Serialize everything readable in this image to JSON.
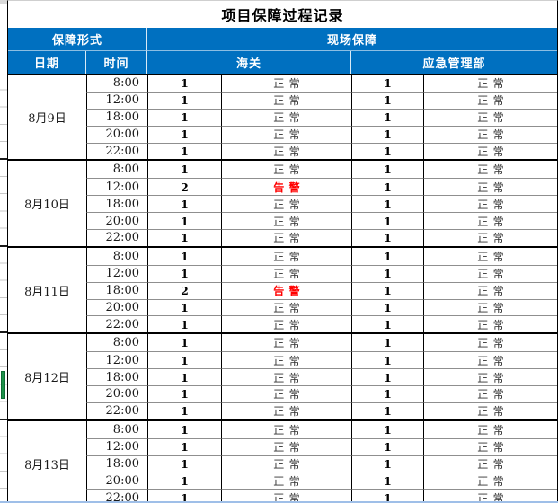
{
  "title": "项目保障过程记录",
  "colors": {
    "header_bg": "#0070C0",
    "header_text": "#FFFFFF",
    "alert_text": "#FF0000",
    "normal_text": "#2F2F2F",
    "selection_green": "#1D9149",
    "bottom_pane_line": "#9FBFE8"
  },
  "header": {
    "support_form": "保障形式",
    "onsite_support": "现场保障",
    "date": "日期",
    "time": "时间",
    "customs": "海关",
    "emergency": "应急管理部"
  },
  "table": {
    "groups": [
      {
        "date": "8月9日",
        "rows": [
          {
            "time": "8:00",
            "customs_count": "1",
            "customs_status": "正常",
            "customs_alert": false,
            "emergency_count": "1",
            "emergency_status": "正常"
          },
          {
            "time": "12:00",
            "customs_count": "1",
            "customs_status": "正常",
            "customs_alert": false,
            "emergency_count": "1",
            "emergency_status": "正常"
          },
          {
            "time": "18:00",
            "customs_count": "1",
            "customs_status": "正常",
            "customs_alert": false,
            "emergency_count": "1",
            "emergency_status": "正常"
          },
          {
            "time": "20:00",
            "customs_count": "1",
            "customs_status": "正常",
            "customs_alert": false,
            "emergency_count": "1",
            "emergency_status": "正常"
          },
          {
            "time": "22:00",
            "customs_count": "1",
            "customs_status": "正常",
            "customs_alert": false,
            "emergency_count": "1",
            "emergency_status": "正常"
          }
        ]
      },
      {
        "date": "8月10日",
        "rows": [
          {
            "time": "8:00",
            "customs_count": "1",
            "customs_status": "正常",
            "customs_alert": false,
            "emergency_count": "1",
            "emergency_status": "正常"
          },
          {
            "time": "12:00",
            "customs_count": "2",
            "customs_status": "告警",
            "customs_alert": true,
            "emergency_count": "1",
            "emergency_status": "正常"
          },
          {
            "time": "18:00",
            "customs_count": "1",
            "customs_status": "正常",
            "customs_alert": false,
            "emergency_count": "1",
            "emergency_status": "正常"
          },
          {
            "time": "20:00",
            "customs_count": "1",
            "customs_status": "正常",
            "customs_alert": false,
            "emergency_count": "1",
            "emergency_status": "正常"
          },
          {
            "time": "22:00",
            "customs_count": "1",
            "customs_status": "正常",
            "customs_alert": false,
            "emergency_count": "1",
            "emergency_status": "正常"
          }
        ]
      },
      {
        "date": "8月11日",
        "rows": [
          {
            "time": "8:00",
            "customs_count": "1",
            "customs_status": "正常",
            "customs_alert": false,
            "emergency_count": "1",
            "emergency_status": "正常"
          },
          {
            "time": "12:00",
            "customs_count": "1",
            "customs_status": "正常",
            "customs_alert": false,
            "emergency_count": "1",
            "emergency_status": "正常"
          },
          {
            "time": "18:00",
            "customs_count": "2",
            "customs_status": "告警",
            "customs_alert": true,
            "emergency_count": "1",
            "emergency_status": "正常"
          },
          {
            "time": "20:00",
            "customs_count": "1",
            "customs_status": "正常",
            "customs_alert": false,
            "emergency_count": "1",
            "emergency_status": "正常"
          },
          {
            "time": "22:00",
            "customs_count": "1",
            "customs_status": "正常",
            "customs_alert": false,
            "emergency_count": "1",
            "emergency_status": "正常"
          }
        ]
      },
      {
        "date": "8月12日",
        "rows": [
          {
            "time": "8:00",
            "customs_count": "1",
            "customs_status": "正常",
            "customs_alert": false,
            "emergency_count": "1",
            "emergency_status": "正常"
          },
          {
            "time": "12:00",
            "customs_count": "1",
            "customs_status": "正常",
            "customs_alert": false,
            "emergency_count": "1",
            "emergency_status": "正常"
          },
          {
            "time": "18:00",
            "customs_count": "1",
            "customs_status": "正常",
            "customs_alert": false,
            "emergency_count": "1",
            "emergency_status": "正常"
          },
          {
            "time": "20:00",
            "customs_count": "1",
            "customs_status": "正常",
            "customs_alert": false,
            "emergency_count": "1",
            "emergency_status": "正常"
          },
          {
            "time": "22:00",
            "customs_count": "1",
            "customs_status": "正常",
            "customs_alert": false,
            "emergency_count": "1",
            "emergency_status": "正常"
          }
        ]
      },
      {
        "date": "8月13日",
        "rows": [
          {
            "time": "8:00",
            "customs_count": "1",
            "customs_status": "正常",
            "customs_alert": false,
            "emergency_count": "1",
            "emergency_status": "正常"
          },
          {
            "time": "12:00",
            "customs_count": "1",
            "customs_status": "正常",
            "customs_alert": false,
            "emergency_count": "1",
            "emergency_status": "正常"
          },
          {
            "time": "18:00",
            "customs_count": "1",
            "customs_status": "正常",
            "customs_alert": false,
            "emergency_count": "1",
            "emergency_status": "正常"
          },
          {
            "time": "20:00",
            "customs_count": "1",
            "customs_status": "正常",
            "customs_alert": false,
            "emergency_count": "1",
            "emergency_status": "正常"
          },
          {
            "time": "22:00",
            "customs_count": "1",
            "customs_status": "正常",
            "customs_alert": false,
            "emergency_count": "1",
            "emergency_status": "正常"
          }
        ]
      }
    ]
  }
}
